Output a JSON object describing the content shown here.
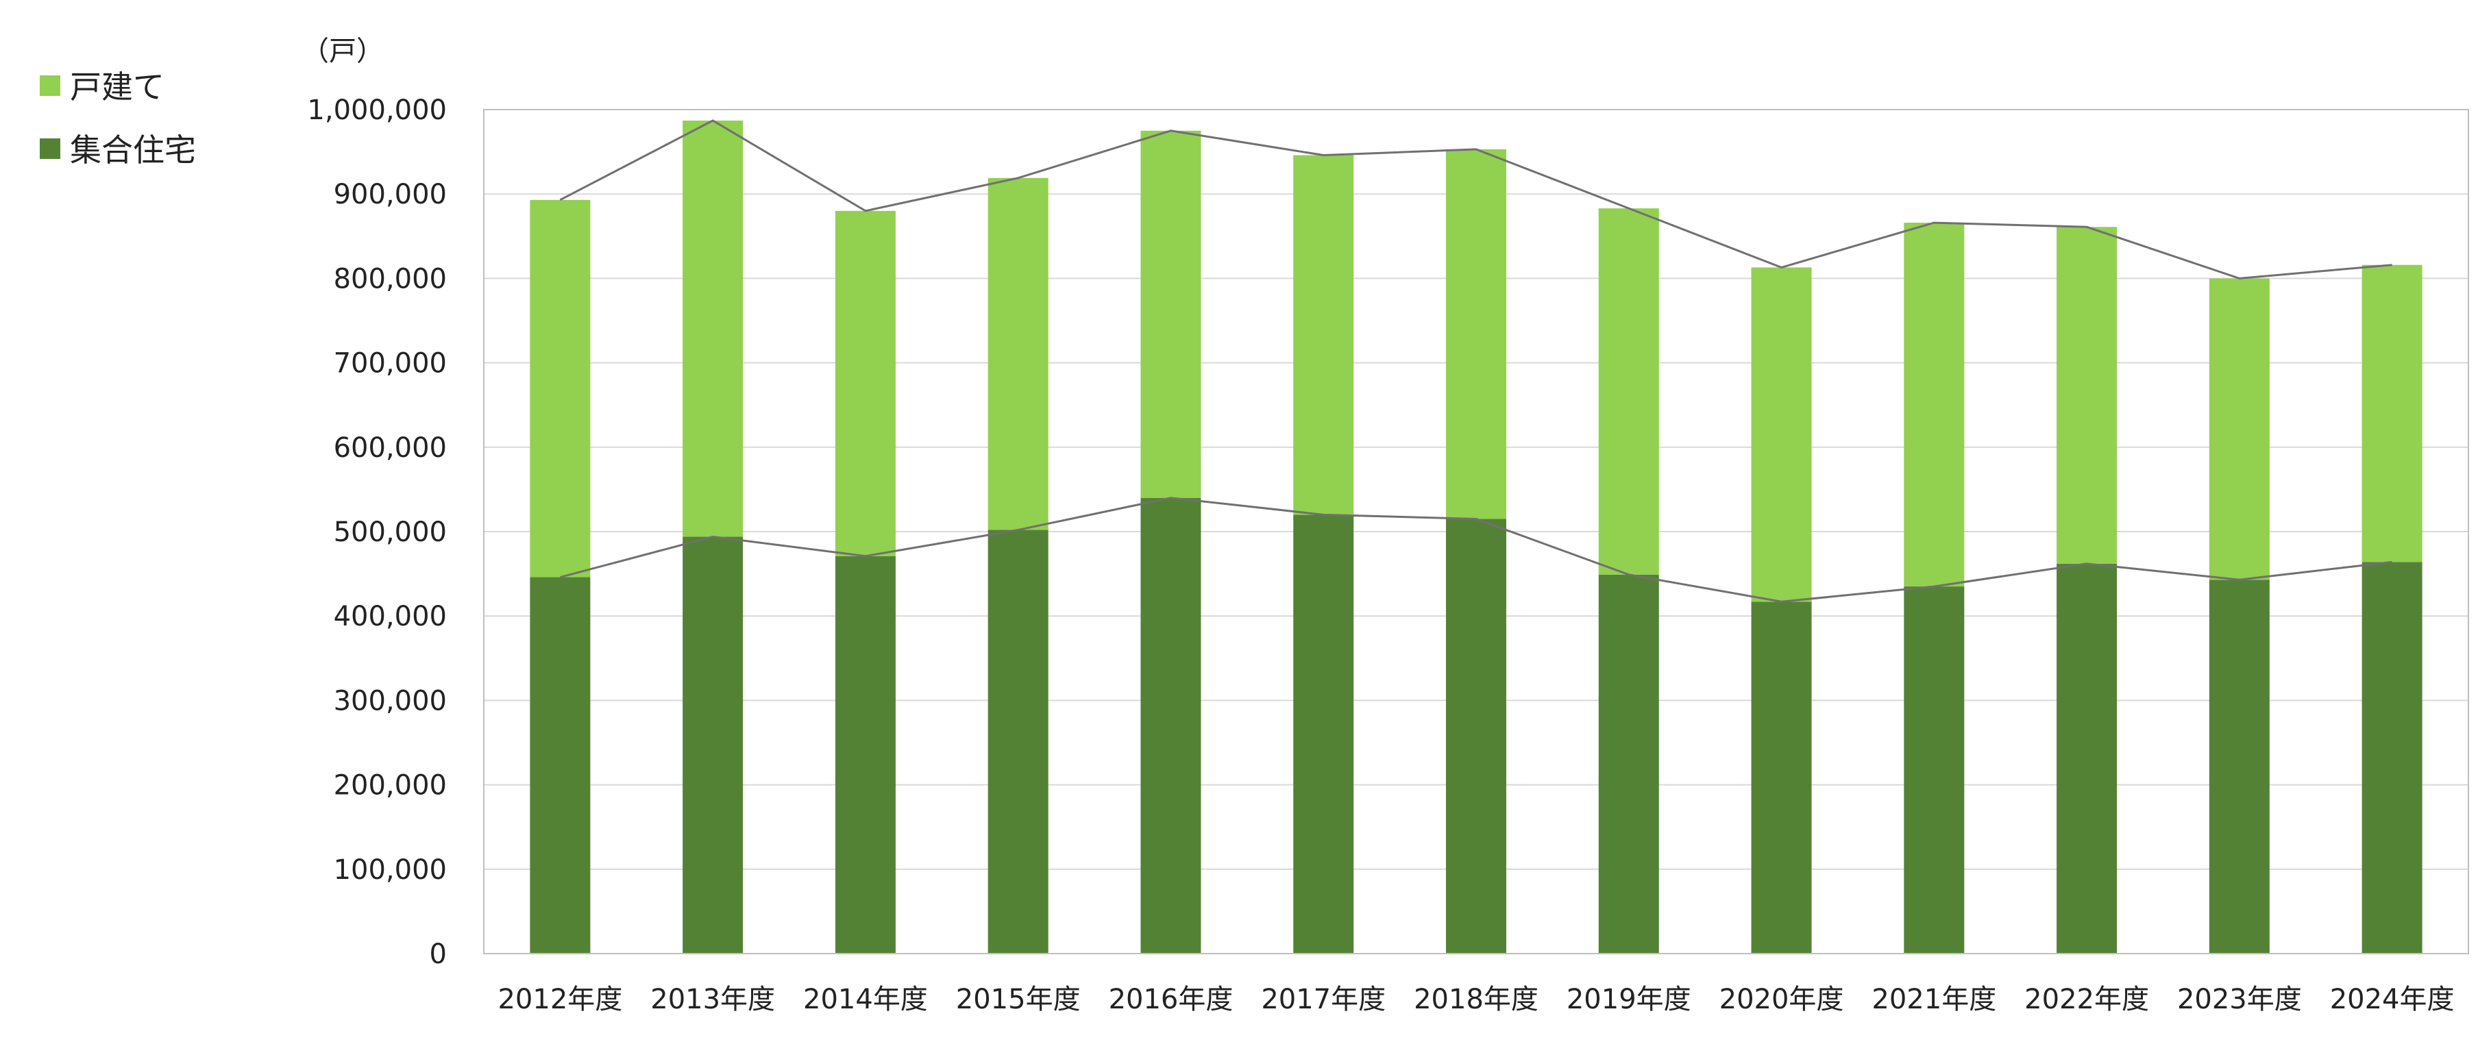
{
  "chart_data": {
    "type": "bar",
    "stacked": true,
    "unit_label": "（戸）",
    "categories": [
      "2012年度",
      "2013年度",
      "2014年度",
      "2015年度",
      "2016年度",
      "2017年度",
      "2018年度",
      "2019年度",
      "2020年度",
      "2021年度",
      "2022年度",
      "2023年度",
      "2024年度"
    ],
    "series": [
      {
        "name": "集合住宅",
        "color": "#548235",
        "values": [
          446000,
          494000,
          471000,
          502000,
          540000,
          520000,
          515000,
          449000,
          417000,
          435000,
          462000,
          443000,
          464000
        ]
      },
      {
        "name": "戸建て",
        "color": "#92d050",
        "values": [
          447000,
          493000,
          409000,
          417000,
          435000,
          426000,
          438000,
          434000,
          396000,
          431000,
          399000,
          357000,
          352000
        ]
      }
    ],
    "ylim": [
      0,
      1000000
    ],
    "yticks": [
      "0",
      "100,000",
      "200,000",
      "300,000",
      "400,000",
      "500,000",
      "600,000",
      "700,000",
      "800,000",
      "900,000",
      "1,000,000"
    ],
    "grid": true,
    "legend_position": "top-left",
    "legend": [
      {
        "label": "戸建て",
        "color": "#92d050"
      },
      {
        "label": "集合住宅",
        "color": "#548235"
      }
    ],
    "line_color": "#707070",
    "gridline_color": "#d9d9d9",
    "axis_color": "#bfbfbf"
  }
}
